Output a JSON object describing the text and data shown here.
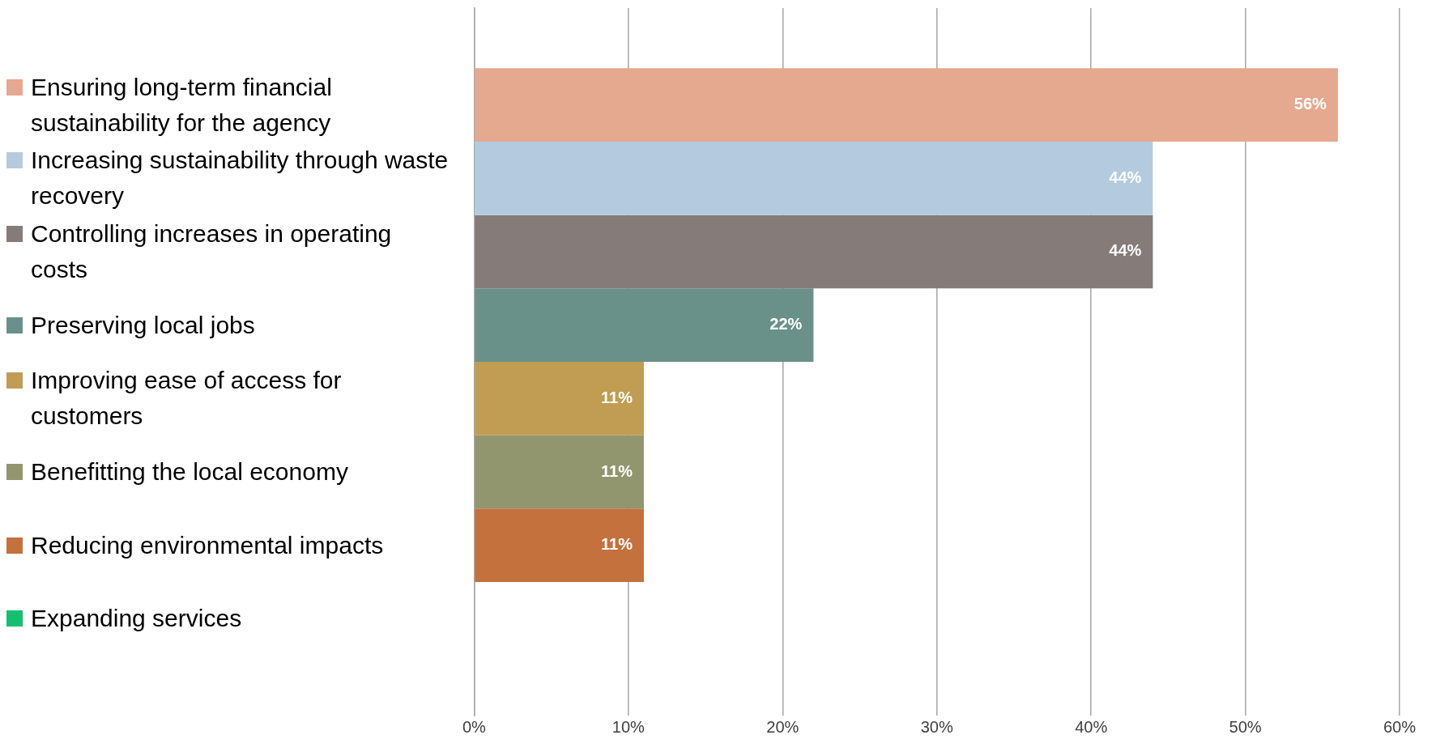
{
  "chart_data": {
    "type": "bar",
    "orientation": "horizontal",
    "categories": [
      null
    ],
    "legend": "left",
    "grid": "x",
    "xlim": [
      0,
      60
    ],
    "xticks": [
      {
        "value": 0,
        "label": "0%"
      },
      {
        "value": 10,
        "label": "10%"
      },
      {
        "value": 20,
        "label": "20%"
      },
      {
        "value": 30,
        "label": "30%"
      },
      {
        "value": 40,
        "label": "40%"
      },
      {
        "value": 50,
        "label": "50%"
      },
      {
        "value": 60,
        "label": "60%"
      }
    ],
    "series": [
      {
        "name": "Ensuring long-term financial sustainability for the agency",
        "color": "#e5a98f",
        "values": [
          56
        ],
        "value_labels": [
          "56%"
        ]
      },
      {
        "name": "Increasing sustainability through waste recovery",
        "color": "#b4cbdf",
        "values": [
          44
        ],
        "value_labels": [
          "44%"
        ]
      },
      {
        "name": "Controlling increases in operating costs",
        "color": "#857b79",
        "values": [
          44
        ],
        "value_labels": [
          "44%"
        ]
      },
      {
        "name": "Preserving local jobs",
        "color": "#6a9189",
        "values": [
          22
        ],
        "value_labels": [
          "22%"
        ]
      },
      {
        "name": "Improving ease of access for customers",
        "color": "#c19d53",
        "values": [
          11
        ],
        "value_labels": [
          "11%"
        ]
      },
      {
        "name": "Benefitting the local economy",
        "color": "#92966f",
        "values": [
          11
        ],
        "value_labels": [
          "11%"
        ]
      },
      {
        "name": "Reducing environmental impacts",
        "color": "#c4713e",
        "values": [
          11
        ],
        "value_labels": [
          "11%"
        ]
      },
      {
        "name": "Expanding services",
        "color": "#13c070",
        "values": [
          0
        ],
        "value_labels": [
          null
        ]
      }
    ]
  }
}
